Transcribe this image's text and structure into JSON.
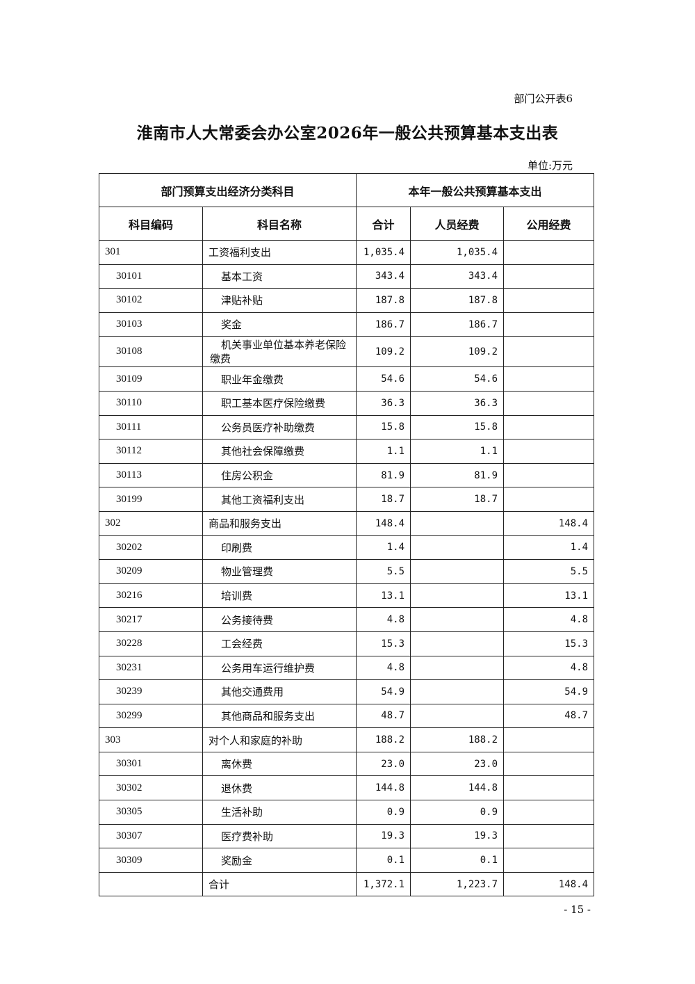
{
  "doc_label": "部门公开表6",
  "title": "淮南市人大常委会办公室2026年一般公共预算基本支出表",
  "unit": "单位:万元",
  "header": {
    "group_left": "部门预算支出经济分类科目",
    "group_right": "本年一般公共预算基本支出",
    "code": "科目编码",
    "name": "科目名称",
    "total": "合计",
    "personnel": "人员经费",
    "public": "公用经费"
  },
  "rows": [
    {
      "code": "301",
      "name": "工资福利支出",
      "total": "1,035.4",
      "personnel": "1,035.4",
      "public": "",
      "level": 1
    },
    {
      "code": "30101",
      "name": "基本工资",
      "total": "343.4",
      "personnel": "343.4",
      "public": "",
      "level": 2
    },
    {
      "code": "30102",
      "name": "津贴补贴",
      "total": "187.8",
      "personnel": "187.8",
      "public": "",
      "level": 2
    },
    {
      "code": "30103",
      "name": "奖金",
      "total": "186.7",
      "personnel": "186.7",
      "public": "",
      "level": 2
    },
    {
      "code": "30108",
      "name": "机关事业单位基本养老保险缴费",
      "total": "109.2",
      "personnel": "109.2",
      "public": "",
      "level": 2
    },
    {
      "code": "30109",
      "name": "职业年金缴费",
      "total": "54.6",
      "personnel": "54.6",
      "public": "",
      "level": 2
    },
    {
      "code": "30110",
      "name": "职工基本医疗保险缴费",
      "total": "36.3",
      "personnel": "36.3",
      "public": "",
      "level": 2
    },
    {
      "code": "30111",
      "name": "公务员医疗补助缴费",
      "total": "15.8",
      "personnel": "15.8",
      "public": "",
      "level": 2
    },
    {
      "code": "30112",
      "name": "其他社会保障缴费",
      "total": "1.1",
      "personnel": "1.1",
      "public": "",
      "level": 2
    },
    {
      "code": "30113",
      "name": "住房公积金",
      "total": "81.9",
      "personnel": "81.9",
      "public": "",
      "level": 2
    },
    {
      "code": "30199",
      "name": "其他工资福利支出",
      "total": "18.7",
      "personnel": "18.7",
      "public": "",
      "level": 2
    },
    {
      "code": "302",
      "name": "商品和服务支出",
      "total": "148.4",
      "personnel": "",
      "public": "148.4",
      "level": 1
    },
    {
      "code": "30202",
      "name": "印刷费",
      "total": "1.4",
      "personnel": "",
      "public": "1.4",
      "level": 2
    },
    {
      "code": "30209",
      "name": "物业管理费",
      "total": "5.5",
      "personnel": "",
      "public": "5.5",
      "level": 2
    },
    {
      "code": "30216",
      "name": "培训费",
      "total": "13.1",
      "personnel": "",
      "public": "13.1",
      "level": 2
    },
    {
      "code": "30217",
      "name": "公务接待费",
      "total": "4.8",
      "personnel": "",
      "public": "4.8",
      "level": 2
    },
    {
      "code": "30228",
      "name": "工会经费",
      "total": "15.3",
      "personnel": "",
      "public": "15.3",
      "level": 2
    },
    {
      "code": "30231",
      "name": "公务用车运行维护费",
      "total": "4.8",
      "personnel": "",
      "public": "4.8",
      "level": 2
    },
    {
      "code": "30239",
      "name": "其他交通费用",
      "total": "54.9",
      "personnel": "",
      "public": "54.9",
      "level": 2
    },
    {
      "code": "30299",
      "name": "其他商品和服务支出",
      "total": "48.7",
      "personnel": "",
      "public": "48.7",
      "level": 2
    },
    {
      "code": "303",
      "name": "对个人和家庭的补助",
      "total": "188.2",
      "personnel": "188.2",
      "public": "",
      "level": 1
    },
    {
      "code": "30301",
      "name": "离休费",
      "total": "23.0",
      "personnel": "23.0",
      "public": "",
      "level": 2
    },
    {
      "code": "30302",
      "name": "退休费",
      "total": "144.8",
      "personnel": "144.8",
      "public": "",
      "level": 2
    },
    {
      "code": "30305",
      "name": "生活补助",
      "total": "0.9",
      "personnel": "0.9",
      "public": "",
      "level": 2
    },
    {
      "code": "30307",
      "name": "医疗费补助",
      "total": "19.3",
      "personnel": "19.3",
      "public": "",
      "level": 2
    },
    {
      "code": "30309",
      "name": "奖励金",
      "total": "0.1",
      "personnel": "0.1",
      "public": "",
      "level": 2
    }
  ],
  "total_row": {
    "code": "",
    "name": "合计",
    "total": "1,372.1",
    "personnel": "1,223.7",
    "public": "148.4"
  },
  "page_number": "- 15 -"
}
